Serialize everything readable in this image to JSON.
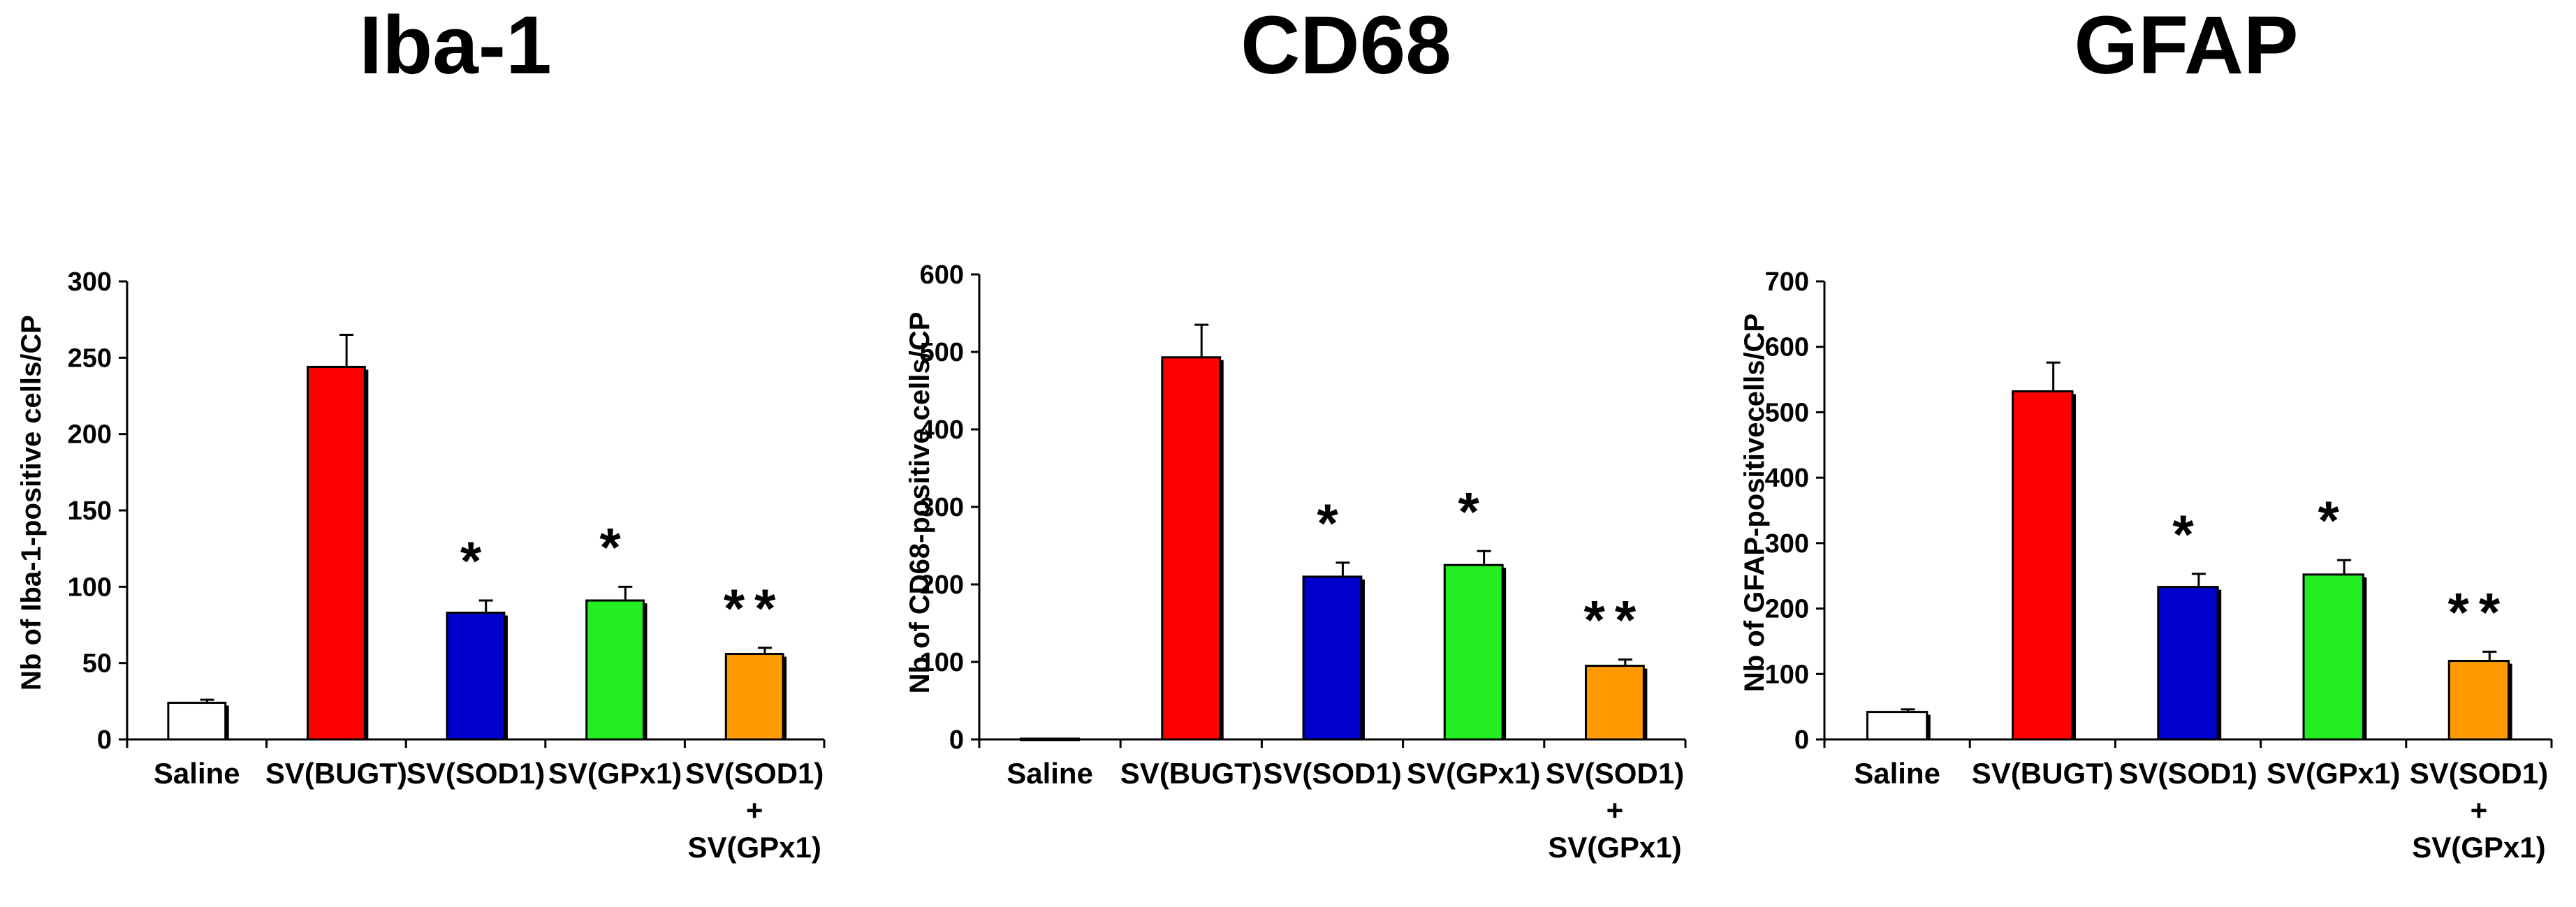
{
  "chart_data": [
    {
      "type": "bar",
      "title": "Iba-1",
      "ylabel": "Nb of Iba-1-positive cells/CP",
      "ylim": [
        0,
        300
      ],
      "yticks": [
        0,
        50,
        100,
        150,
        200,
        250,
        300
      ],
      "categories": [
        [
          "Saline"
        ],
        [
          "SV(BUGT)"
        ],
        [
          "SV(SOD1)"
        ],
        [
          "SV(GPx1)"
        ],
        [
          "SV(SOD1)",
          "+",
          "SV(GPx1)"
        ]
      ],
      "values": [
        24,
        244,
        83,
        91,
        56
      ],
      "errors": [
        2,
        21,
        8,
        9,
        4
      ],
      "colors": [
        "#ffffff",
        "#ff0000",
        "#0000cc",
        "#22ee22",
        "#ff9900"
      ],
      "significance": [
        "",
        "",
        "*",
        "*",
        "**"
      ]
    },
    {
      "type": "bar",
      "title": "CD68",
      "ylabel": "Nb of CD68-positive cells/CP",
      "ylim": [
        0,
        600
      ],
      "yticks": [
        0,
        100,
        200,
        300,
        400,
        500,
        600
      ],
      "categories": [
        [
          "Saline"
        ],
        [
          "SV(BUGT)"
        ],
        [
          "SV(SOD1)"
        ],
        [
          "SV(GPx1)"
        ],
        [
          "SV(SOD1)",
          "+",
          "SV(GPx1)"
        ]
      ],
      "values": [
        1,
        493,
        210,
        225,
        95
      ],
      "errors": [
        0,
        42,
        18,
        18,
        8
      ],
      "colors": [
        "#ffffff",
        "#ff0000",
        "#0000cc",
        "#22ee22",
        "#ff9900"
      ],
      "significance": [
        "",
        "",
        "*",
        "*",
        "**"
      ]
    },
    {
      "type": "bar",
      "title": "GFAP",
      "ylabel": "Nb of GFAP-positivecells/CP",
      "ylim": [
        0,
        700
      ],
      "yticks": [
        0,
        100,
        200,
        300,
        400,
        500,
        600,
        700
      ],
      "categories": [
        [
          "Saline"
        ],
        [
          "SV(BUGT)"
        ],
        [
          "SV(SOD1)"
        ],
        [
          "SV(GPx1)"
        ],
        [
          "SV(SOD1)",
          "+",
          "SV(GPx1)"
        ]
      ],
      "values": [
        42,
        532,
        233,
        252,
        120
      ],
      "errors": [
        4,
        44,
        20,
        22,
        14
      ],
      "colors": [
        "#ffffff",
        "#ff0000",
        "#0000cc",
        "#22ee22",
        "#ff9900"
      ],
      "significance": [
        "",
        "",
        "*",
        "*",
        "**"
      ]
    }
  ]
}
